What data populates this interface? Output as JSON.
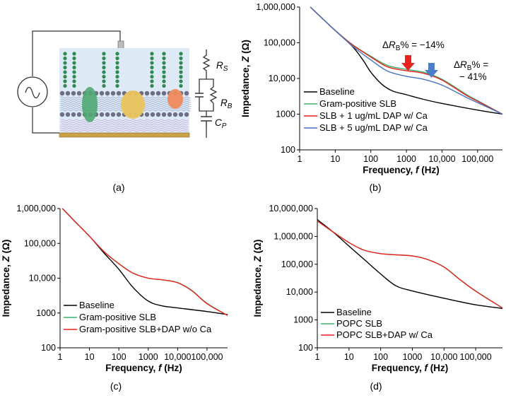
{
  "panel_labels": [
    "(a)",
    "(b)",
    "(c)",
    "(d)"
  ],
  "circuit": {
    "rs": "R",
    "rs_sub": "S",
    "rb": "R",
    "rb_sub": "B",
    "cp": "C",
    "cp_sub": "P"
  },
  "annotations": {
    "b_first": {
      "prefix": "Δ",
      "r": "R",
      "sub": "B",
      "suffix": "% = −14%"
    },
    "b_second_line1": {
      "prefix": "Δ",
      "r": "R",
      "sub": "B",
      "suffix": "% ="
    },
    "b_second_line2": "− 41%"
  },
  "colors": {
    "baseline": "#000000",
    "gram_positive": "#3cb371",
    "red": "#e8221c",
    "blue": "#4472c4",
    "arrow_red": "#e8221c",
    "arrow_blue": "#4a7ec8"
  },
  "chart_data": [
    {
      "id": "b",
      "type": "line",
      "xscale": "log",
      "yscale": "log",
      "xlim": [
        1,
        500000
      ],
      "ylim": [
        100,
        1000000
      ],
      "xticks": [
        1,
        10,
        100,
        1000,
        10000,
        100000
      ],
      "xtick_labels": [
        "1",
        "10",
        "100",
        "1000",
        "10,000",
        "100,000"
      ],
      "yticks": [
        100,
        1000,
        10000,
        100000,
        1000000
      ],
      "ytick_labels": [
        "100",
        "1000",
        "10,000",
        "100,000",
        "1,000,000"
      ],
      "xlabel": "Frequency, f (Hz)",
      "ylabel": "Impedance, Z (Ω)",
      "series": [
        {
          "name": "Baseline",
          "color": "#000000",
          "points": [
            [
              2,
              1000000
            ],
            [
              5,
              420000
            ],
            [
              10,
              220000
            ],
            [
              30,
              80000
            ],
            [
              60,
              33000
            ],
            [
              100,
              15000
            ],
            [
              200,
              7000
            ],
            [
              400,
              4500
            ],
            [
              1000,
              3500
            ],
            [
              3000,
              2600
            ],
            [
              10000,
              2000
            ],
            [
              100000,
              1300
            ],
            [
              500000,
              1000
            ]
          ]
        },
        {
          "name": "Gram-positive SLB",
          "color": "#3cb371",
          "points": [
            [
              2,
              1000000
            ],
            [
              5,
              420000
            ],
            [
              10,
              220000
            ],
            [
              30,
              90000
            ],
            [
              100,
              42000
            ],
            [
              300,
              23000
            ],
            [
              1000,
              18000
            ],
            [
              3000,
              15000
            ],
            [
              10000,
              9500
            ],
            [
              50000,
              3500
            ],
            [
              100000,
              2400
            ],
            [
              500000,
              1000
            ]
          ]
        },
        {
          "name": "SLB + 1 ug/mL DAP w/ Ca",
          "color": "#e8221c",
          "points": [
            [
              2,
              1000000
            ],
            [
              5,
              420000
            ],
            [
              10,
              220000
            ],
            [
              30,
              88000
            ],
            [
              100,
              40000
            ],
            [
              300,
              21000
            ],
            [
              1000,
              16500
            ],
            [
              3000,
              14000
            ],
            [
              10000,
              9000
            ],
            [
              50000,
              3300
            ],
            [
              100000,
              2300
            ],
            [
              500000,
              1000
            ]
          ]
        },
        {
          "name": "SLB + 5 ug/mL DAP w/ Ca",
          "color": "#4472c4",
          "points": [
            [
              2,
              1000000
            ],
            [
              5,
              420000
            ],
            [
              10,
              220000
            ],
            [
              30,
              82000
            ],
            [
              100,
              33000
            ],
            [
              300,
              16000
            ],
            [
              1000,
              11500
            ],
            [
              3000,
              9500
            ],
            [
              10000,
              6500
            ],
            [
              50000,
              2900
            ],
            [
              100000,
              2100
            ],
            [
              500000,
              1000
            ]
          ]
        }
      ]
    },
    {
      "id": "c",
      "type": "line",
      "xscale": "log",
      "yscale": "log",
      "xlim": [
        1,
        500000
      ],
      "ylim": [
        100,
        1000000
      ],
      "xticks": [
        1,
        10,
        100,
        1000,
        10000,
        100000
      ],
      "xtick_labels": [
        "1",
        "10",
        "100",
        "1000",
        "10,000",
        "100,000"
      ],
      "yticks": [
        100,
        1000,
        10000,
        100000,
        1000000
      ],
      "ytick_labels": [
        "100",
        "1000",
        "10,000",
        "100,000",
        "1,000,000"
      ],
      "xlabel": "Frequency, f (Hz)",
      "ylabel": "Impedance, Z (Ω)",
      "series": [
        {
          "name": "Baseline",
          "color": "#000000",
          "points": [
            [
              1.2,
              1000000
            ],
            [
              3,
              450000
            ],
            [
              10,
              160000
            ],
            [
              30,
              55000
            ],
            [
              100,
              18000
            ],
            [
              300,
              5500
            ],
            [
              1000,
              2200
            ],
            [
              3000,
              1600
            ],
            [
              10000,
              1400
            ],
            [
              100000,
              1100
            ],
            [
              500000,
              900
            ]
          ]
        },
        {
          "name": "Gram-positive SLB",
          "color": "#3cb371",
          "points": [
            [
              1.2,
              1000000
            ],
            [
              3,
              450000
            ],
            [
              10,
              160000
            ],
            [
              30,
              60000
            ],
            [
              100,
              26000
            ],
            [
              300,
              14000
            ],
            [
              1000,
              10000
            ],
            [
              3000,
              9000
            ],
            [
              10000,
              7500
            ],
            [
              30000,
              4500
            ],
            [
              100000,
              1900
            ],
            [
              500000,
              850
            ]
          ]
        },
        {
          "name": "Gram-positive SLB+DAP w/o Ca",
          "color": "#e8221c",
          "points": [
            [
              1.2,
              1000000
            ],
            [
              3,
              450000
            ],
            [
              10,
              160000
            ],
            [
              30,
              60000
            ],
            [
              100,
              26000
            ],
            [
              300,
              14000
            ],
            [
              1000,
              10000
            ],
            [
              3000,
              9000
            ],
            [
              10000,
              7400
            ],
            [
              30000,
              4400
            ],
            [
              100000,
              1850
            ],
            [
              500000,
              850
            ]
          ]
        }
      ]
    },
    {
      "id": "d",
      "type": "line",
      "xscale": "log",
      "yscale": "log",
      "xlim": [
        1,
        700000
      ],
      "ylim": [
        100,
        10000000
      ],
      "xticks": [
        1,
        10,
        100,
        1000,
        10000,
        100000
      ],
      "xtick_labels": [
        "1",
        "10",
        "100",
        "1000",
        "10,000",
        "100,000"
      ],
      "yticks": [
        100,
        1000,
        10000,
        100000,
        1000000,
        10000000
      ],
      "ytick_labels": [
        "100",
        "1000",
        "10,000",
        "100,000",
        "1,000,000",
        "10,000,000"
      ],
      "xlabel": "Frequency, f (Hz)",
      "ylabel": "Impedance, Z (Ω)",
      "series": [
        {
          "name": "Baseline",
          "color": "#000000",
          "points": [
            [
              1,
              4000000
            ],
            [
              3,
              1500000
            ],
            [
              10,
              450000
            ],
            [
              30,
              150000
            ],
            [
              100,
              45000
            ],
            [
              300,
              17000
            ],
            [
              1000,
              11000
            ],
            [
              10000,
              6000
            ],
            [
              100000,
              3500
            ],
            [
              700000,
              2600
            ]
          ]
        },
        {
          "name": "POPC SLB",
          "color": "#3cb371",
          "points": [
            [
              1,
              3600000
            ],
            [
              3,
              1500000
            ],
            [
              10,
              600000
            ],
            [
              30,
              320000
            ],
            [
              100,
              240000
            ],
            [
              300,
              220000
            ],
            [
              1000,
              200000
            ],
            [
              3000,
              150000
            ],
            [
              10000,
              80000
            ],
            [
              30000,
              30000
            ],
            [
              100000,
              11000
            ],
            [
              700000,
              2700
            ]
          ]
        },
        {
          "name": "POPC SLB+DAP w/ Ca",
          "color": "#e8221c",
          "points": [
            [
              1,
              3600000
            ],
            [
              3,
              1500000
            ],
            [
              10,
              600000
            ],
            [
              30,
              320000
            ],
            [
              100,
              240000
            ],
            [
              300,
              218000
            ],
            [
              1000,
              198000
            ],
            [
              3000,
              148000
            ],
            [
              10000,
              79000
            ],
            [
              30000,
              29500
            ],
            [
              100000,
              10800
            ],
            [
              700000,
              2700
            ]
          ]
        }
      ]
    }
  ]
}
